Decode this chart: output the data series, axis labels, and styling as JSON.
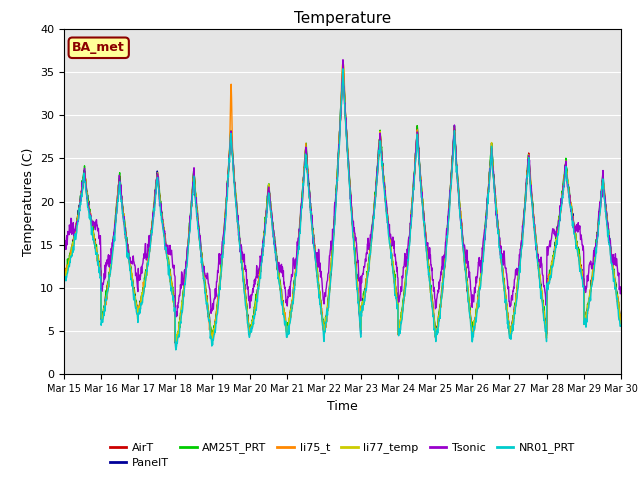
{
  "title": "Temperature",
  "xlabel": "Time",
  "ylabel": "Temperatures (C)",
  "ylim": [
    0,
    40
  ],
  "background_color": "#e5e5e5",
  "series": [
    {
      "name": "AirT",
      "color": "#cc0000"
    },
    {
      "name": "PanelT",
      "color": "#000099"
    },
    {
      "name": "AM25T_PRT",
      "color": "#00cc00"
    },
    {
      "name": "li75_t",
      "color": "#ff8800"
    },
    {
      "name": "li77_temp",
      "color": "#cccc00"
    },
    {
      "name": "Tsonic",
      "color": "#9900cc"
    },
    {
      "name": "NR01_PRT",
      "color": "#00cccc"
    }
  ],
  "xtick_labels": [
    "Mar 15",
    "Mar 16",
    "Mar 17",
    "Mar 18",
    "Mar 19",
    "Mar 20",
    "Mar 21",
    "Mar 22",
    "Mar 23",
    "Mar 24",
    "Mar 25",
    "Mar 26",
    "Mar 27",
    "Mar 28",
    "Mar 29",
    "Mar 30"
  ],
  "ytick_vals": [
    0,
    5,
    10,
    15,
    20,
    25,
    30,
    35,
    40
  ],
  "grid_color": "#ffffff",
  "linewidth": 1.0,
  "annotation_text": "BA_met",
  "n_days": 15,
  "pts_per_day": 96
}
